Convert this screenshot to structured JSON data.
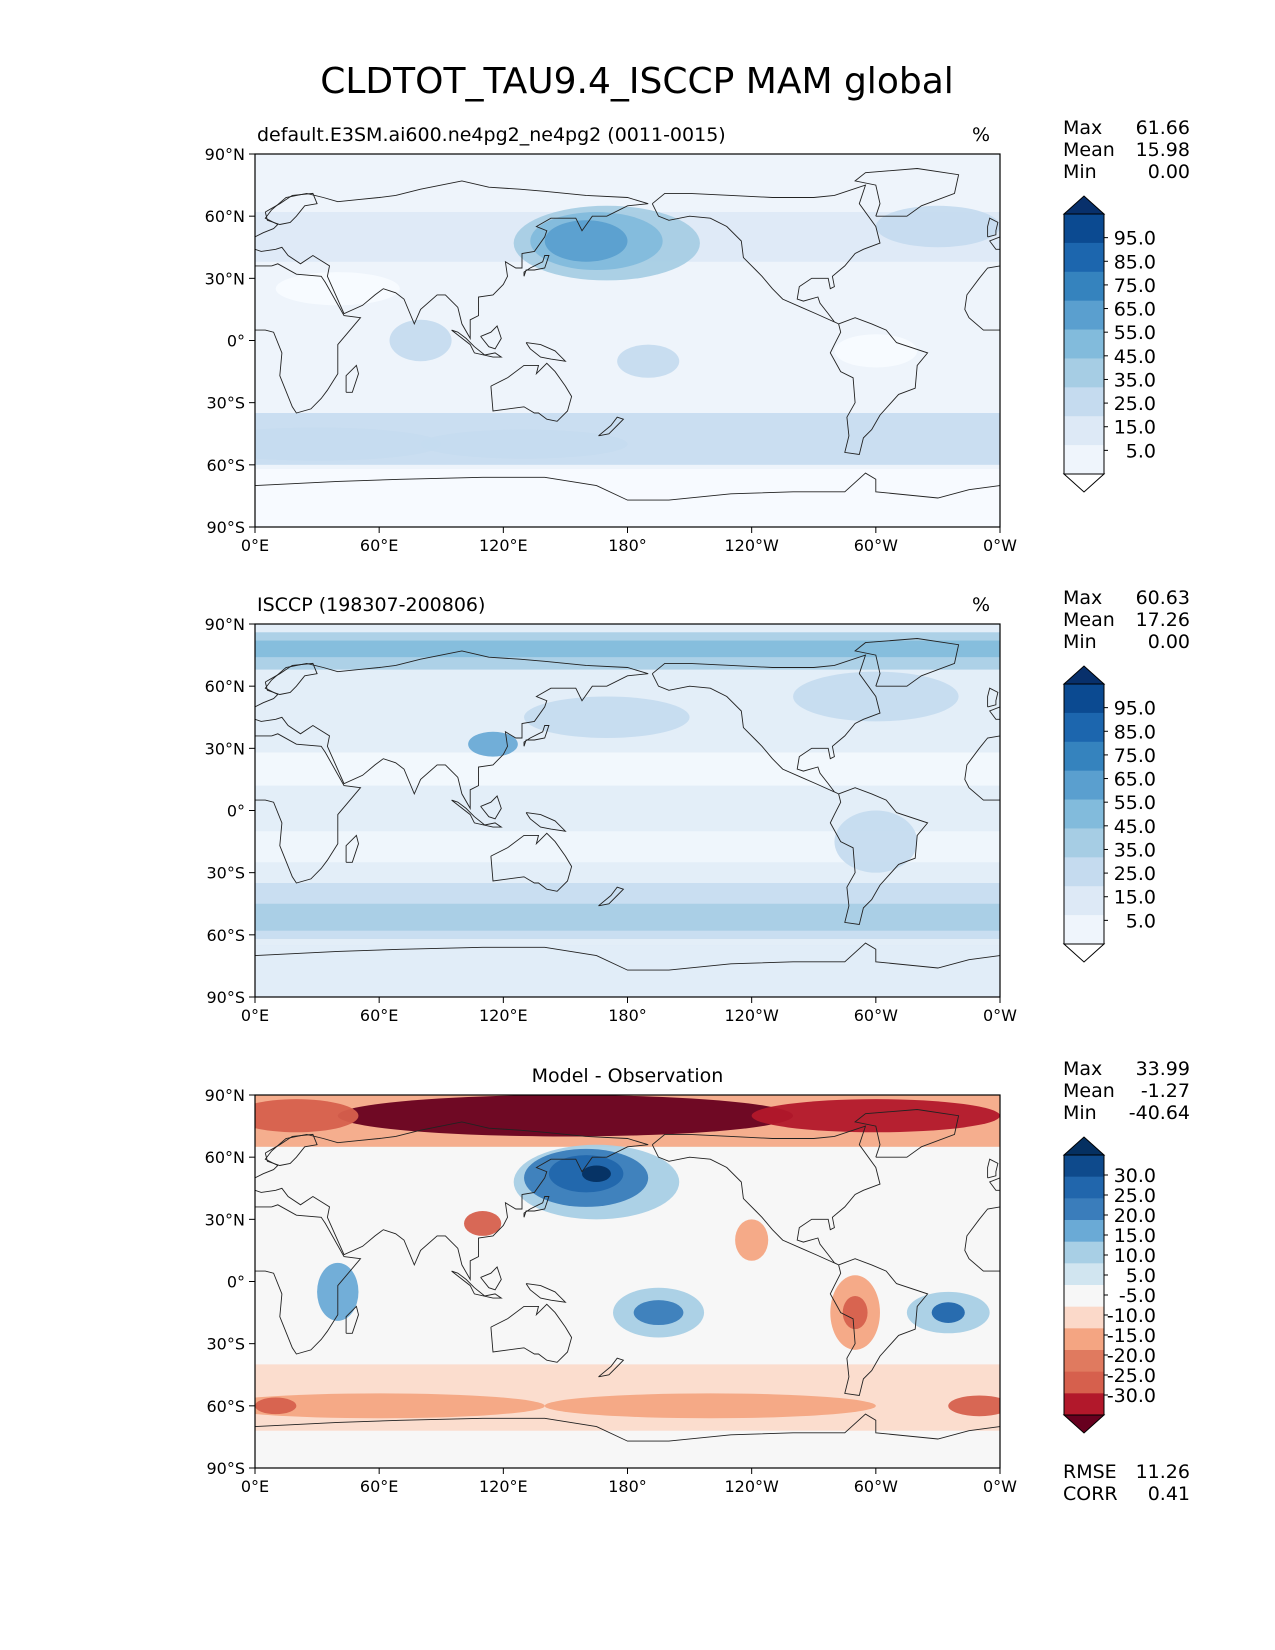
{
  "figure": {
    "title": "CLDTOT_TAU9.4_ISCCP MAM global"
  },
  "axes": {
    "lat_ticks": [
      "90°N",
      "60°N",
      "30°N",
      "0°",
      "30°S",
      "60°S",
      "90°S"
    ],
    "lon_ticks": [
      "0°E",
      "60°E",
      "120°E",
      "180°",
      "120°W",
      "60°W",
      "0°W"
    ]
  },
  "panels": [
    {
      "id": "model",
      "title_left": "default.E3SM.ai600.ne4pg2_ne4pg2 (0011-0015)",
      "title_center": "",
      "units": "%",
      "stats": [
        {
          "label": "Max",
          "value": "61.66"
        },
        {
          "label": "Mean",
          "value": "15.98"
        },
        {
          "label": "Min",
          "value": "0.00"
        }
      ],
      "colorbar": {
        "ticks": [
          "95.0",
          "85.0",
          "75.0",
          "65.0",
          "55.0",
          "45.0",
          "35.0",
          "25.0",
          "15.0",
          "5.0"
        ],
        "colors": [
          "#08306b",
          "#0b4a91",
          "#1c66ae",
          "#3583be",
          "#5a9fcf",
          "#82bbdc",
          "#a6cde4",
          "#c5dbef",
          "#dde9f6",
          "#eff5fc",
          "#ffffff"
        ]
      },
      "fields": {
        "background": "#eef4fb",
        "regions": [
          {
            "name": "north-pacific-cloud-max",
            "value": 55,
            "color": "#5a9fcf"
          },
          {
            "name": "north-pacific-core",
            "value": 45,
            "color": "#82bbdc"
          },
          {
            "name": "north-atlantic-band",
            "value": 25,
            "color": "#c5dbef"
          },
          {
            "name": "southern-ocean-band",
            "value": 25,
            "color": "#c5dbef"
          },
          {
            "name": "antarctica-low",
            "value": 5,
            "color": "#f6faff"
          }
        ]
      }
    },
    {
      "id": "obs",
      "title_left": "ISCCP (198307-200806)",
      "title_center": "",
      "units": "%",
      "stats": [
        {
          "label": "Max",
          "value": "60.63"
        },
        {
          "label": "Mean",
          "value": "17.26"
        },
        {
          "label": "Min",
          "value": "0.00"
        }
      ],
      "colorbar": {
        "ticks": [
          "95.0",
          "85.0",
          "75.0",
          "65.0",
          "55.0",
          "45.0",
          "35.0",
          "25.0",
          "15.0",
          "5.0"
        ],
        "colors": [
          "#08306b",
          "#0b4a91",
          "#1c66ae",
          "#3583be",
          "#5a9fcf",
          "#82bbdc",
          "#a6cde4",
          "#c5dbef",
          "#dde9f6",
          "#eff5fc",
          "#ffffff"
        ]
      },
      "fields": {
        "background": "#e3eef8",
        "regions": [
          {
            "name": "arctic-high",
            "value": 45,
            "color": "#82bbdc"
          },
          {
            "name": "east-china-sea",
            "value": 45,
            "color": "#6aaad6"
          },
          {
            "name": "southern-ocean-band",
            "value": 35,
            "color": "#a6cde4"
          },
          {
            "name": "subtropical-clear",
            "value": 5,
            "color": "#f3f8fd"
          },
          {
            "name": "antarctica-low",
            "value": 15,
            "color": "#e0ecf7"
          }
        ]
      }
    },
    {
      "id": "diff",
      "title_left": "",
      "title_center": "Model - Observation",
      "units": "",
      "stats": [
        {
          "label": "Max",
          "value": "33.99"
        },
        {
          "label": "Mean",
          "value": "-1.27"
        },
        {
          "label": "Min",
          "value": "-40.64"
        }
      ],
      "colorbar": {
        "ticks": [
          "30.0",
          "25.0",
          "20.0",
          "15.0",
          "10.0",
          "5.0",
          "-5.0",
          "-10.0",
          "-15.0",
          "-20.0",
          "-25.0",
          "-30.0"
        ],
        "colors": [
          "#053061",
          "#0e4a8c",
          "#2166ac",
          "#3a7dbb",
          "#6aaad6",
          "#a8cfe5",
          "#d1e5f0",
          "#f7f7f7",
          "#fbd9c9",
          "#f4a582",
          "#e07a5f",
          "#d6604d",
          "#b2182b",
          "#67001f"
        ]
      },
      "fields": {
        "background": "#f7f7f7",
        "regions": [
          {
            "name": "arctic-strong-positive",
            "value": -30,
            "color": "#67001f"
          },
          {
            "name": "north-pacific-negative",
            "value": 30,
            "color": "#2166ac"
          },
          {
            "name": "east-asia-positive",
            "value": -20,
            "color": "#d6604d"
          },
          {
            "name": "africa-negative",
            "value": 15,
            "color": "#6aaad6"
          },
          {
            "name": "south-pacific-negative",
            "value": 20,
            "color": "#3a7dbb"
          },
          {
            "name": "brazil-negative",
            "value": 25,
            "color": "#2166ac"
          },
          {
            "name": "andes-positive",
            "value": -20,
            "color": "#d6604d"
          },
          {
            "name": "southern-ocean-positive",
            "value": -15,
            "color": "#f4a582"
          }
        ]
      },
      "extra_stats": [
        {
          "label": "RMSE",
          "value": "11.26"
        },
        {
          "label": "CORR",
          "value": "0.41"
        }
      ]
    }
  ]
}
